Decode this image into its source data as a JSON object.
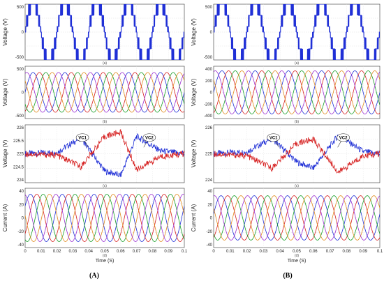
{
  "figure_labels": {
    "left": "(A)",
    "right": "(B)"
  },
  "series_colors": [
    "#1f2fd6",
    "#d62020",
    "#169e26",
    "#e08a1e",
    "#9b2fd1"
  ],
  "chart_data": [
    {
      "column": "A",
      "row": 1,
      "type": "line",
      "title": "",
      "sublabel": "(a)",
      "ylabel": "Voltage (V)",
      "yticks": [
        "500",
        "0",
        "-500"
      ],
      "ylim": [
        -500,
        500
      ],
      "series": [
        {
          "kind": "staircase",
          "color_index": 0,
          "levels": [
            100,
            300,
            500
          ],
          "cycles": 5
        }
      ]
    },
    {
      "column": "A",
      "row": 2,
      "type": "line",
      "title": "",
      "sublabel": "(b)",
      "ylabel": "Voltage (V)",
      "yticks": [
        "500",
        "0",
        "-500"
      ],
      "ylim": [
        -500,
        500
      ],
      "series": [
        {
          "kind": "sine",
          "color_index": 0,
          "amplitude": 380,
          "cycles": 5,
          "phase_deg": 0
        },
        {
          "kind": "sine",
          "color_index": 1,
          "amplitude": 380,
          "cycles": 5,
          "phase_deg": -72
        },
        {
          "kind": "sine",
          "color_index": 2,
          "amplitude": 380,
          "cycles": 5,
          "phase_deg": -144
        },
        {
          "kind": "sine",
          "color_index": 3,
          "amplitude": 380,
          "cycles": 5,
          "phase_deg": -216
        },
        {
          "kind": "sine",
          "color_index": 4,
          "amplitude": 380,
          "cycles": 5,
          "phase_deg": -288
        }
      ]
    },
    {
      "column": "A",
      "row": 3,
      "type": "line",
      "title": "",
      "sublabel": "(c)",
      "ylabel": "Voltage (V)",
      "yticks": [
        "226",
        "225.5",
        "225",
        "224.5",
        "224"
      ],
      "ylim": [
        224,
        226
      ],
      "annotations": [
        "VC1",
        "VC2"
      ],
      "series": [
        {
          "kind": "triangle",
          "color_index": 0,
          "name_label": "VC2",
          "center": 225,
          "points": [
            [
              0,
              225
            ],
            [
              0.02,
              225.05
            ],
            [
              0.035,
              225.55
            ],
            [
              0.05,
              224.4
            ],
            [
              0.06,
              224.25
            ],
            [
              0.07,
              225.6
            ],
            [
              0.085,
              225.1
            ],
            [
              0.1,
              225
            ]
          ]
        },
        {
          "kind": "triangle",
          "color_index": 1,
          "name_label": "VC1",
          "center": 225,
          "points": [
            [
              0,
              225
            ],
            [
              0.02,
              224.95
            ],
            [
              0.035,
              224.55
            ],
            [
              0.05,
              225.6
            ],
            [
              0.06,
              225.75
            ],
            [
              0.07,
              224.45
            ],
            [
              0.085,
              224.9
            ],
            [
              0.1,
              225
            ]
          ]
        }
      ]
    },
    {
      "column": "A",
      "row": 4,
      "type": "line",
      "title": "",
      "sublabel": "(d)",
      "ylabel": "Current (A)",
      "xlabel": "Time (S)",
      "yticks": [
        "40",
        "20",
        "0",
        "-20",
        "-40"
      ],
      "ylim": [
        -40,
        40
      ],
      "xticks": [
        "0",
        "0.01",
        "0.02",
        "0.03",
        "0.04",
        "0.05",
        "0.06",
        "0.07",
        "0.08",
        "0.09",
        "0.1"
      ],
      "xlim": [
        0,
        0.1
      ],
      "series": [
        {
          "kind": "sine",
          "color_index": 0,
          "amplitude": 32,
          "cycles": 5,
          "phase_deg": 30
        },
        {
          "kind": "sine",
          "color_index": 1,
          "amplitude": 32,
          "cycles": 5,
          "phase_deg": -42
        },
        {
          "kind": "sine",
          "color_index": 2,
          "amplitude": 32,
          "cycles": 5,
          "phase_deg": -114
        },
        {
          "kind": "sine",
          "color_index": 3,
          "amplitude": 32,
          "cycles": 5,
          "phase_deg": -186
        },
        {
          "kind": "sine",
          "color_index": 4,
          "amplitude": 32,
          "cycles": 5,
          "phase_deg": -258
        }
      ]
    },
    {
      "column": "B",
      "row": 1,
      "type": "line",
      "title": "",
      "sublabel": "(a)",
      "ylabel": "Voltage (V)",
      "yticks": [
        "500",
        "0",
        "-500"
      ],
      "ylim": [
        -500,
        500
      ],
      "series": [
        {
          "kind": "staircase",
          "color_index": 0,
          "levels": [
            100,
            300,
            500
          ],
          "cycles": 5
        }
      ]
    },
    {
      "column": "B",
      "row": 2,
      "type": "line",
      "title": "",
      "sublabel": "(b)",
      "ylabel": "Voltage (V)",
      "yticks": [
        "400",
        "200",
        "0",
        "-200",
        "-400"
      ],
      "ylim": [
        -400,
        400
      ],
      "series": [
        {
          "kind": "sine",
          "color_index": 0,
          "amplitude": 330,
          "cycles": 5,
          "phase_deg": 0
        },
        {
          "kind": "sine",
          "color_index": 1,
          "amplitude": 330,
          "cycles": 5,
          "phase_deg": -72
        },
        {
          "kind": "sine",
          "color_index": 2,
          "amplitude": 330,
          "cycles": 5,
          "phase_deg": -144
        },
        {
          "kind": "sine",
          "color_index": 3,
          "amplitude": 330,
          "cycles": 5,
          "phase_deg": -216
        },
        {
          "kind": "sine",
          "color_index": 4,
          "amplitude": 330,
          "cycles": 5,
          "phase_deg": -288
        }
      ]
    },
    {
      "column": "B",
      "row": 3,
      "type": "line",
      "title": "",
      "sublabel": "(c)",
      "ylabel": "Voltage (V)",
      "yticks": [
        "226",
        "225",
        "224"
      ],
      "ylim": [
        223.6,
        226.4
      ],
      "annotations": [
        "VC1",
        "VC2"
      ],
      "series": [
        {
          "kind": "triangle",
          "color_index": 0,
          "name_label": "VC2",
          "center": 225,
          "points": [
            [
              0,
              225
            ],
            [
              0.02,
              225.1
            ],
            [
              0.035,
              225.75
            ],
            [
              0.05,
              224.6
            ],
            [
              0.06,
              224.3
            ],
            [
              0.075,
              225.9
            ],
            [
              0.09,
              225.1
            ],
            [
              0.1,
              225
            ]
          ]
        },
        {
          "kind": "triangle",
          "color_index": 1,
          "name_label": "VC1",
          "center": 225,
          "points": [
            [
              0,
              225
            ],
            [
              0.02,
              224.9
            ],
            [
              0.035,
              224.3
            ],
            [
              0.05,
              225.5
            ],
            [
              0.06,
              225.7
            ],
            [
              0.075,
              224.1
            ],
            [
              0.09,
              224.9
            ],
            [
              0.1,
              225
            ]
          ]
        }
      ]
    },
    {
      "column": "B",
      "row": 4,
      "type": "line",
      "title": "",
      "sublabel": "(d)",
      "ylabel": "Current (A)",
      "xlabel": "Time (S)",
      "yticks": [
        "40",
        "20",
        "0",
        "-20",
        "-40"
      ],
      "ylim": [
        -40,
        40
      ],
      "xticks": [
        "0",
        "0.01",
        "0.02",
        "0.03",
        "0.04",
        "0.05",
        "0.06",
        "0.07",
        "0.08",
        "0.09",
        "0.1"
      ],
      "xlim": [
        0,
        0.1
      ],
      "series": [
        {
          "kind": "sine",
          "color_index": 0,
          "amplitude": 30,
          "cycles": 5,
          "phase_deg": 10
        },
        {
          "kind": "sine",
          "color_index": 1,
          "amplitude": 30,
          "cycles": 5,
          "phase_deg": -62
        },
        {
          "kind": "sine",
          "color_index": 2,
          "amplitude": 30,
          "cycles": 5,
          "phase_deg": -134
        },
        {
          "kind": "sine",
          "color_index": 3,
          "amplitude": 30,
          "cycles": 5,
          "phase_deg": -206
        },
        {
          "kind": "sine",
          "color_index": 4,
          "amplitude": 30,
          "cycles": 5,
          "phase_deg": -278
        }
      ]
    }
  ]
}
